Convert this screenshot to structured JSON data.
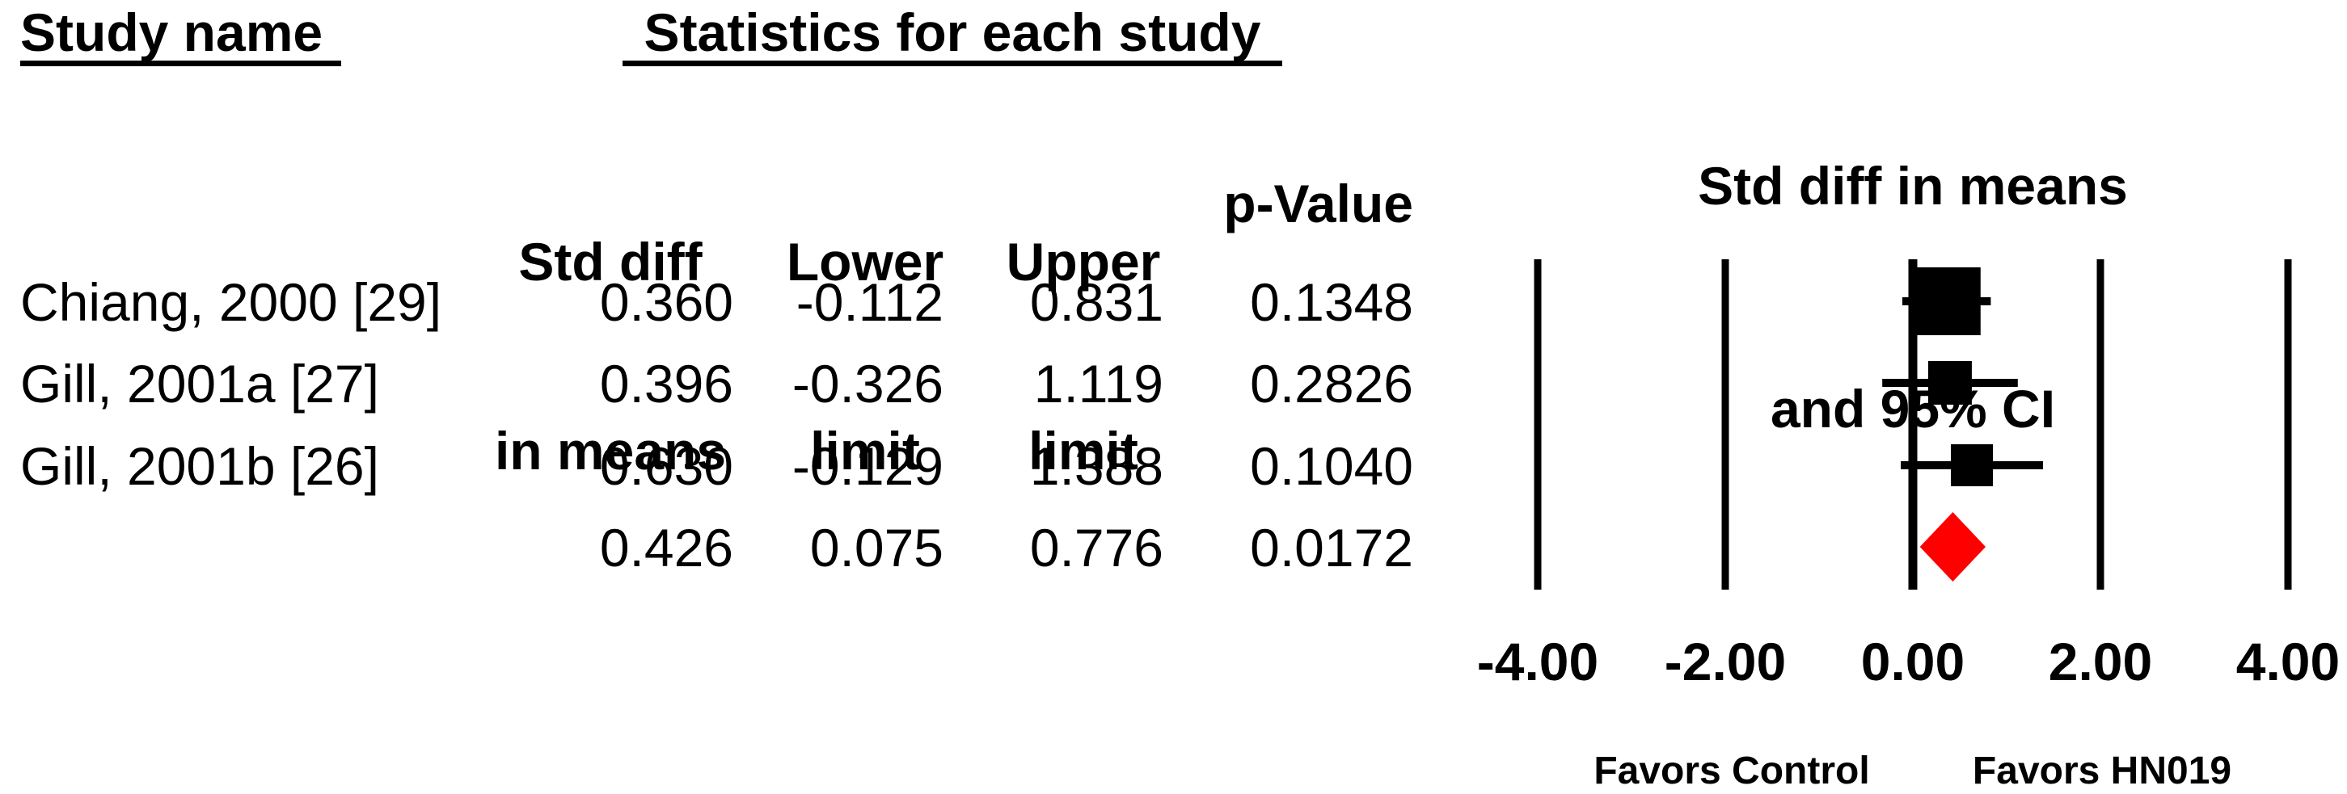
{
  "headers": {
    "study_name": "Study name",
    "statistics": "Statistics for each study",
    "plot_title_line1": "Std diff in means",
    "plot_title_line2": "and 95% CI"
  },
  "columns": {
    "std_diff_line1": "Std diff",
    "std_diff_line2": "in means",
    "lower_line1": "Lower",
    "lower_line2": "limit",
    "upper_line1": "Upper",
    "upper_line2": "limit",
    "p_value": "p-Value"
  },
  "table": {
    "rows": [
      {
        "study": "Chiang, 2000 [29]",
        "std_diff": "0.360",
        "lower": "-0.112",
        "upper": "0.831",
        "p_value": "0.1348"
      },
      {
        "study": "Gill, 2001a [27]",
        "std_diff": "0.396",
        "lower": "-0.326",
        "upper": "1.119",
        "p_value": "0.2826"
      },
      {
        "study": "Gill, 2001b [26]",
        "std_diff": "0.630",
        "lower": "-0.129",
        "upper": "1.388",
        "p_value": "0.1040"
      },
      {
        "study": "",
        "std_diff": "0.426",
        "lower": "0.075",
        "upper": "0.776",
        "p_value": "0.0172"
      }
    ]
  },
  "chart_data": {
    "type": "forest",
    "title": "Std diff in means and 95% CI",
    "xlim": [
      -4,
      4
    ],
    "x_ticks": [
      -4,
      -2,
      0,
      2,
      4
    ],
    "x_tick_labels": [
      "-4.00",
      "-2.00",
      "0.00",
      "2.00",
      "4.00"
    ],
    "zero_line": 0,
    "grid": true,
    "studies": [
      {
        "name": "Chiang, 2000 [29]",
        "estimate": 0.36,
        "ci_lower": -0.112,
        "ci_upper": 0.831,
        "p_value": 0.1348,
        "marker": "square",
        "marker_size": 84,
        "color": "#000000"
      },
      {
        "name": "Gill, 2001a [27]",
        "estimate": 0.396,
        "ci_lower": -0.326,
        "ci_upper": 1.119,
        "p_value": 0.2826,
        "marker": "square",
        "marker_size": 54,
        "color": "#000000"
      },
      {
        "name": "Gill, 2001b [26]",
        "estimate": 0.63,
        "ci_lower": -0.129,
        "ci_upper": 1.388,
        "p_value": 0.104,
        "marker": "square",
        "marker_size": 52,
        "color": "#000000"
      }
    ],
    "summary": {
      "estimate": 0.426,
      "ci_lower": 0.075,
      "ci_upper": 0.776,
      "p_value": 0.0172,
      "marker": "diamond",
      "color": "#FF0000"
    },
    "footer_left": "Favors Control",
    "footer_right": "Favors HN019"
  },
  "colors": {
    "text": "#000000",
    "marker": "#000000",
    "summary_diamond": "#FF0000",
    "background": "#FFFFFF"
  }
}
